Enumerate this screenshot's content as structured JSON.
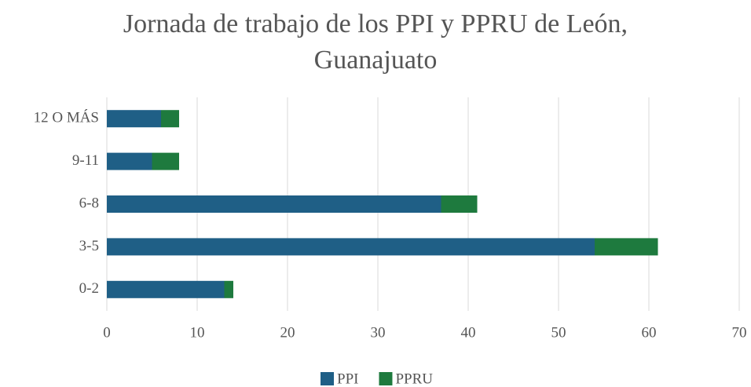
{
  "chart_data": {
    "type": "stacked-bar-horizontal",
    "title": "Jornada de trabajo de los PPI y PPRU de León, Guanajuato",
    "categories": [
      "0-2",
      "3-5",
      "6-8",
      "9-11",
      "12 O MÁS"
    ],
    "series": [
      {
        "name": "PPI",
        "color": "#1f5f86",
        "values": [
          13,
          54,
          37,
          5,
          6
        ]
      },
      {
        "name": "PPRU",
        "color": "#1e7a3e",
        "values": [
          1,
          7,
          4,
          3,
          2
        ]
      }
    ],
    "xlim": [
      0,
      70
    ],
    "xticks": [
      0,
      10,
      20,
      30,
      40,
      50,
      60,
      70
    ],
    "grid": true,
    "legend": "bottom"
  }
}
